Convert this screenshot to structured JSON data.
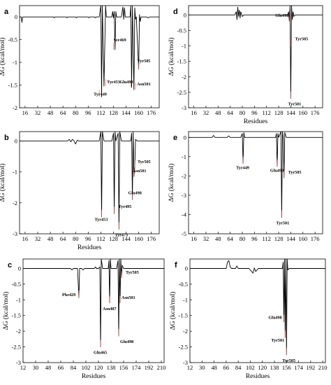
{
  "figure": {
    "trace_color": "#000000",
    "marker_color": "#e8606a"
  },
  "chart_data": [
    {
      "panel": "a",
      "type": "line",
      "xlim": [
        9,
        186
      ],
      "ylim": [
        -2,
        0.25
      ],
      "xticks": [
        16,
        32,
        48,
        64,
        80,
        96,
        112,
        128,
        144,
        160,
        176
      ],
      "yticks": [
        0,
        -0.5,
        -1,
        -1.5,
        -2
      ],
      "xlabel": "",
      "ylabel": "ΔG (kcal/mol)",
      "series": [
        {
          "values": [
            [
              9,
              0
            ],
            [
              11,
              0
            ],
            [
              12,
              -0.12
            ],
            [
              13,
              0
            ],
            [
              18,
              0
            ],
            [
              52,
              0
            ],
            [
              53,
              -0.02
            ],
            [
              54,
              0
            ],
            [
              68,
              0
            ],
            [
              69,
              -0.02
            ],
            [
              70,
              0
            ],
            [
              80,
              0
            ],
            [
              81,
              -0.02
            ],
            [
              82,
              0
            ],
            [
              96,
              0
            ],
            [
              97,
              -0.02
            ],
            [
              98,
              0
            ],
            [
              104,
              0
            ],
            [
              105,
              -0.02
            ],
            [
              106,
              0
            ],
            [
              110,
              0
            ],
            [
              112,
              0.25
            ],
            [
              113,
              -1.76
            ],
            [
              114,
              0.25
            ],
            [
              116,
              -1.52
            ],
            [
              118,
              0.25
            ],
            [
              119,
              0
            ],
            [
              126,
              0
            ],
            [
              127,
              0.12
            ],
            [
              128,
              -0.02
            ],
            [
              129,
              0.12
            ],
            [
              130,
              -0.72
            ],
            [
              131,
              0.12
            ],
            [
              132,
              0
            ],
            [
              138,
              0
            ],
            [
              140,
              0.22
            ],
            [
              141,
              -0.05
            ],
            [
              142,
              0.2
            ],
            [
              143,
              0
            ],
            [
              149,
              0
            ],
            [
              150,
              0.25
            ],
            [
              151,
              -1.55
            ],
            [
              152,
              0.25
            ],
            [
              154,
              -1.6
            ],
            [
              155,
              0.2
            ],
            [
              156,
              -0.05
            ],
            [
              157,
              0
            ],
            [
              160,
              -1.15
            ],
            [
              161,
              0.05
            ],
            [
              162,
              -0.1
            ],
            [
              163,
              0
            ],
            [
              170,
              0
            ],
            [
              172,
              -0.02
            ],
            [
              174,
              0
            ],
            [
              186,
              0
            ]
          ]
        }
      ],
      "annotations": [
        {
          "label": "Tyr449",
          "x": 110,
          "y": -1.76
        },
        {
          "label": "Tyr453",
          "x": 118,
          "y": -1.52
        },
        {
          "label": "Ser469",
          "x": 128,
          "y": -0.72
        },
        {
          "label": "Glu498",
          "x": 150,
          "y": -1.55
        },
        {
          "label": "Asn501",
          "x": 156,
          "y": -1.6
        },
        {
          "label": "Tyr505",
          "x": 160,
          "y": -1.15
        }
      ]
    },
    {
      "panel": "b",
      "type": "line",
      "xlim": [
        9,
        186
      ],
      "ylim": [
        -3,
        0.3
      ],
      "xticks": [
        16,
        32,
        48,
        64,
        80,
        96,
        112,
        128,
        144,
        160,
        176
      ],
      "yticks": [
        0,
        -1,
        -2,
        -3
      ],
      "xlabel": "Residues",
      "ylabel": "ΔG (kcal/mol)",
      "series": [
        {
          "values": [
            [
              9,
              0
            ],
            [
              70,
              0
            ],
            [
              72,
              0.05
            ],
            [
              74,
              -0.03
            ],
            [
              76,
              0.05
            ],
            [
              78,
              0
            ],
            [
              80,
              -0.1
            ],
            [
              82,
              0.02
            ],
            [
              84,
              0
            ],
            [
              110,
              0
            ],
            [
              112,
              0.3
            ],
            [
              113,
              -2.45
            ],
            [
              114,
              0.3
            ],
            [
              116,
              0
            ],
            [
              126,
              0
            ],
            [
              128,
              0.25
            ],
            [
              129,
              -2.35
            ],
            [
              130,
              0.3
            ],
            [
              131,
              0
            ],
            [
              134,
              0.25
            ],
            [
              135,
              -2.85
            ],
            [
              136,
              0.3
            ],
            [
              138,
              0
            ],
            [
              150,
              0
            ],
            [
              151,
              0.25
            ],
            [
              152,
              -1.9
            ],
            [
              153,
              0.3
            ],
            [
              154,
              -1.15
            ],
            [
              155,
              -0.85
            ],
            [
              156,
              0.05
            ],
            [
              158,
              0
            ],
            [
              186,
              0
            ]
          ]
        }
      ],
      "annotations": [
        {
          "label": "Tyr453",
          "x": 113,
          "y": -2.45
        },
        {
          "label": "Tyr473",
          "x": 135,
          "y": -2.85
        },
        {
          "label": "Tyr495",
          "x": 129,
          "y": -2.35
        },
        {
          "label": "Glu498",
          "x": 152,
          "y": -1.9
        },
        {
          "label": "Asn501",
          "x": 154,
          "y": -1.15
        },
        {
          "label": "Tyr505",
          "x": 155,
          "y": -0.85
        }
      ]
    },
    {
      "panel": "c",
      "type": "line",
      "xlim": [
        12,
        214
      ],
      "ylim": [
        -3,
        0.3
      ],
      "xticks": [
        12,
        30,
        48,
        66,
        84,
        102,
        120,
        138,
        156,
        174,
        192,
        210
      ],
      "yticks": [
        0,
        -0.5,
        -1,
        -1.5,
        -2,
        -2.5,
        -3
      ],
      "xlabel": "Residues",
      "ylabel": "ΔG (kcal/mol)",
      "series": [
        {
          "values": [
            [
              12,
              0
            ],
            [
              80,
              0
            ],
            [
              82,
              -0.05
            ],
            [
              84,
              0
            ],
            [
              90,
              0
            ],
            [
              92,
              -0.93
            ],
            [
              93,
              0
            ],
            [
              96,
              0
            ],
            [
              98,
              -0.05
            ],
            [
              100,
              0
            ],
            [
              114,
              0
            ],
            [
              116,
              0.05
            ],
            [
              117,
              0
            ],
            [
              120,
              0
            ],
            [
              122,
              0.05
            ],
            [
              123,
              -2.5
            ],
            [
              124,
              0.3
            ],
            [
              126,
              0
            ],
            [
              134,
              0
            ],
            [
              135,
              0.25
            ],
            [
              136,
              -1.1
            ],
            [
              137,
              0.3
            ],
            [
              138,
              0
            ],
            [
              146,
              0
            ],
            [
              148,
              0.25
            ],
            [
              149,
              -2.15
            ],
            [
              150,
              0.3
            ],
            [
              151,
              -1.1
            ],
            [
              152,
              0.3
            ],
            [
              153,
              -0.3
            ],
            [
              154,
              0.1
            ],
            [
              156,
              0
            ],
            [
              214,
              0
            ]
          ]
        }
      ],
      "annotations": [
        {
          "label": "Phe429",
          "x": 92,
          "y": -0.93
        },
        {
          "label": "Gln465",
          "x": 123,
          "y": -2.5
        },
        {
          "label": "Asn487",
          "x": 136,
          "y": -1.1
        },
        {
          "label": "Asn501",
          "x": 151,
          "y": -1.1
        },
        {
          "label": "Glu498",
          "x": 149,
          "y": -2.15
        },
        {
          "label": "Tyr505",
          "x": 153,
          "y": -0.3
        }
      ]
    },
    {
      "panel": "d",
      "type": "line",
      "xlim": [
        9,
        186
      ],
      "ylim": [
        -3,
        0.3
      ],
      "xticks": [
        16,
        32,
        48,
        64,
        80,
        96,
        112,
        128,
        144,
        160,
        176
      ],
      "yticks": [
        0,
        -0.5,
        -1,
        -1.5,
        -2,
        -2.5,
        -3
      ],
      "xlabel": "Residues",
      "ylabel": "ΔG (kcal/mol)",
      "series": [
        {
          "values": [
            [
              9,
              0
            ],
            [
              70,
              0
            ],
            [
              72,
              0.1
            ],
            [
              73,
              -0.15
            ],
            [
              74,
              0.25
            ],
            [
              75,
              -0.05
            ],
            [
              76,
              0.15
            ],
            [
              77,
              -0.1
            ],
            [
              78,
              0.1
            ],
            [
              80,
              -0.05
            ],
            [
              82,
              0
            ],
            [
              140,
              0
            ],
            [
              141,
              0.1
            ],
            [
              142,
              -0.2
            ],
            [
              143,
              0.3
            ],
            [
              144,
              -2.7
            ],
            [
              145,
              0.3
            ],
            [
              146,
              -0.15
            ],
            [
              147,
              0.1
            ],
            [
              148,
              -0.05
            ],
            [
              150,
              0
            ],
            [
              186,
              0
            ]
          ]
        }
      ],
      "annotations": [
        {
          "label": "Glu498",
          "x": 142,
          "y": -0.2
        },
        {
          "label": "Tyr505",
          "x": 144,
          "y": -1.0
        },
        {
          "label": "Tyr501",
          "x": 144,
          "y": -2.7
        }
      ]
    },
    {
      "panel": "e",
      "type": "line",
      "xlim": [
        9,
        186
      ],
      "ylim": [
        -5,
        0.3
      ],
      "xticks": [
        16,
        32,
        48,
        64,
        80,
        96,
        112,
        128,
        144,
        160,
        176
      ],
      "yticks": [
        0,
        -1,
        -2,
        -3,
        -4,
        -5
      ],
      "xlabel": "",
      "ylabel": "ΔG (kcal/mol)",
      "series": [
        {
          "values": [
            [
              9,
              0
            ],
            [
              40,
              0
            ],
            [
              42,
              0.1
            ],
            [
              44,
              0
            ],
            [
              60,
              0
            ],
            [
              62,
              0.08
            ],
            [
              64,
              0
            ],
            [
              78,
              0
            ],
            [
              80,
              0.2
            ],
            [
              81,
              -1.35
            ],
            [
              82,
              0.25
            ],
            [
              83,
              0
            ],
            [
              124,
              0
            ],
            [
              125,
              0.2
            ],
            [
              126,
              -1.5
            ],
            [
              127,
              0.2
            ],
            [
              128,
              0
            ],
            [
              131,
              0.3
            ],
            [
              132,
              -4.15
            ],
            [
              133,
              0.3
            ],
            [
              134,
              0
            ],
            [
              135,
              -2.1
            ],
            [
              136,
              0.25
            ],
            [
              138,
              0
            ],
            [
              186,
              0
            ]
          ]
        }
      ],
      "annotations": [
        {
          "label": "Tyr449",
          "x": 81,
          "y": -1.35
        },
        {
          "label": "Glu498",
          "x": 126,
          "y": -1.5
        },
        {
          "label": "Tyr505",
          "x": 135,
          "y": -2.1
        },
        {
          "label": "Tyr501",
          "x": 132,
          "y": -4.15
        }
      ]
    },
    {
      "panel": "f",
      "type": "line",
      "xlim": [
        12,
        214
      ],
      "ylim": [
        -3,
        0.3
      ],
      "xticks": [
        12,
        30,
        48,
        66,
        84,
        102,
        120,
        138,
        156,
        174,
        192,
        210
      ],
      "yticks": [
        0,
        -0.5,
        -1,
        -1.5,
        -2,
        -2.5,
        -3
      ],
      "xlabel": "Residues",
      "ylabel": "ΔG (kcal/mol)",
      "series": [
        {
          "values": [
            [
              12,
              0
            ],
            [
              66,
              0
            ],
            [
              68,
              0.2
            ],
            [
              70,
              0.25
            ],
            [
              72,
              0.05
            ],
            [
              74,
              0
            ],
            [
              80,
              0
            ],
            [
              82,
              0.08
            ],
            [
              84,
              0
            ],
            [
              100,
              0
            ],
            [
              104,
              -0.1
            ],
            [
              106,
              -0.15
            ],
            [
              108,
              0.02
            ],
            [
              110,
              -0.1
            ],
            [
              112,
              -0.05
            ],
            [
              114,
              0
            ],
            [
              150,
              0
            ],
            [
              151,
              0.2
            ],
            [
              152,
              -1.7
            ],
            [
              153,
              0.3
            ],
            [
              154,
              -2.2
            ],
            [
              155,
              0.3
            ],
            [
              156,
              -2.75
            ],
            [
              157,
              0.3
            ],
            [
              158,
              -0.05
            ],
            [
              160,
              0
            ],
            [
              214,
              0
            ]
          ]
        }
      ],
      "annotations": [
        {
          "label": "Glu498",
          "x": 152,
          "y": -1.7
        },
        {
          "label": "Tyr501",
          "x": 154,
          "y": -2.2
        },
        {
          "label": "Tyr505",
          "x": 156,
          "y": -2.75
        }
      ]
    }
  ]
}
